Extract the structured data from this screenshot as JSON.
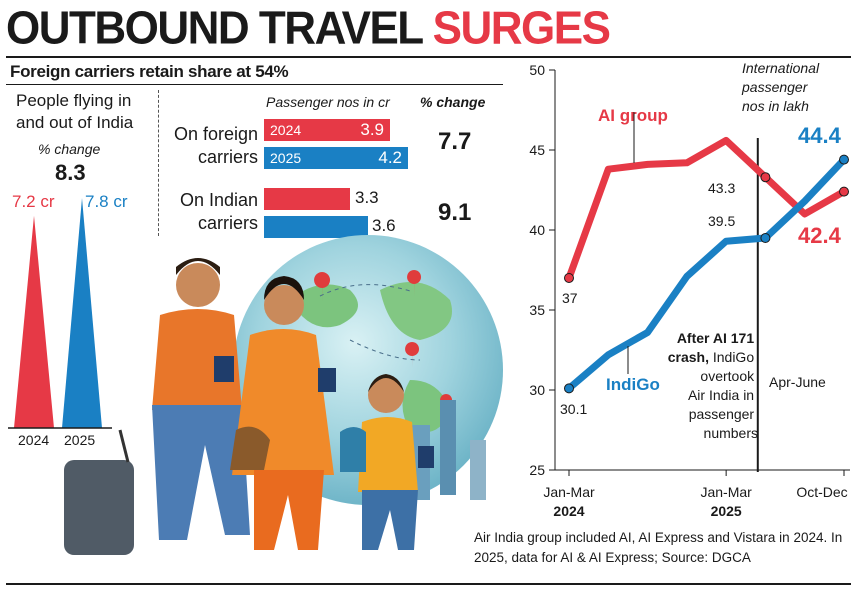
{
  "headline": {
    "part1": "OUTBOUND TRAVEL",
    "part2": "SURGES"
  },
  "subhead": "Foreign carriers retain share at 54%",
  "people": {
    "title": "People flying in and out of India",
    "pct_label": "% change",
    "pct_value": "8.3",
    "cones": [
      {
        "year": "2024",
        "value_label": "7.2 cr",
        "value": 7.2,
        "color": "#e63946"
      },
      {
        "year": "2025",
        "value_label": "7.8 cr",
        "value": 7.8,
        "color": "#1a80c4"
      }
    ]
  },
  "carriers": {
    "header_passengers": "Passenger nos in cr",
    "header_change": "% change",
    "rows": [
      {
        "label_line1": "On foreign",
        "label_line2": "carriers",
        "y2024": 3.9,
        "y2025": 4.2,
        "y2024_label": "3.9",
        "y2025_label": "4.2",
        "change": "7.7"
      },
      {
        "label_line1": "On Indian",
        "label_line2": "carriers",
        "y2024": 3.3,
        "y2025": 3.6,
        "y2024_label": "3.3",
        "y2025_label": "3.6",
        "change": "9.1"
      }
    ],
    "year_2024": "2024",
    "year_2025": "2025"
  },
  "chart_data": {
    "type": "line",
    "title": "International passenger nos in lakh",
    "title_lines": [
      "International",
      "passenger",
      "nos in lakh"
    ],
    "ylim": [
      25,
      50
    ],
    "yticks": [
      25,
      30,
      35,
      40,
      45,
      50
    ],
    "x_labels": [
      {
        "index": 0,
        "line1": "Jan-Mar",
        "line2": "2024"
      },
      {
        "index": 4,
        "line1": "Jan-Mar",
        "line2": "2025"
      },
      {
        "index": 7,
        "line1": "Oct-Dec",
        "line2": ""
      }
    ],
    "x": [
      "Jan-Mar 2024",
      "Apr-Jun 2024",
      "Jul-Sep 2024",
      "Oct-Dec 2024",
      "Jan-Mar 2025",
      "Apr-Jun 2025",
      "Jul-Sep 2025",
      "Oct-Dec 2025"
    ],
    "series": [
      {
        "name": "AI group",
        "color": "#e63946",
        "values": [
          37.0,
          43.8,
          44.1,
          44.2,
          45.6,
          43.3,
          41.0,
          42.4
        ]
      },
      {
        "name": "IndiGo",
        "color": "#1a80c4",
        "values": [
          30.1,
          32.2,
          33.6,
          37.1,
          39.3,
          39.5,
          41.8,
          44.4
        ]
      }
    ],
    "point_labels": [
      "37",
      "43.3",
      "39.5",
      "30.1",
      "44.4",
      "42.4"
    ],
    "marker_label": "Apr-June",
    "annotation": {
      "bold": "After AI 171 crash,",
      "rest": "IndiGo overtook Air India in passenger numbers"
    },
    "footnote": "Air India group included AI, AI Express and Vistara in 2024. In 2025, data for AI & AI Express; Source: DGCA"
  },
  "colors": {
    "red": "#e63946",
    "blue": "#1a80c4"
  }
}
